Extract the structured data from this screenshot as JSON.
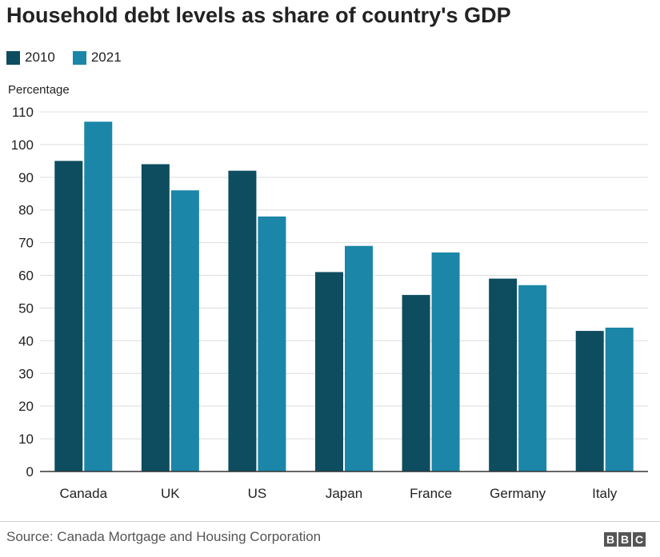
{
  "colors": {
    "series_2010": "#0d4d5f",
    "series_2021": "#1b86a8",
    "gridline": "#dddddd",
    "axis": "#333333"
  },
  "chart_data": {
    "type": "bar",
    "title": "Household debt levels as share of country's GDP",
    "ylabel": "Percentage",
    "xlabel": "",
    "categories": [
      "Canada",
      "UK",
      "US",
      "Japan",
      "France",
      "Germany",
      "Italy"
    ],
    "series": [
      {
        "name": "2010",
        "values": [
          95,
          94,
          92,
          61,
          54,
          59,
          43
        ]
      },
      {
        "name": "2021",
        "values": [
          107,
          86,
          78,
          69,
          67,
          57,
          44
        ]
      }
    ],
    "ylim": [
      0,
      110
    ],
    "yticks": [
      0,
      10,
      20,
      30,
      40,
      50,
      60,
      70,
      80,
      90,
      100,
      110
    ],
    "grid": true,
    "legend": "top-left"
  },
  "footer": {
    "source": "Source: Canada Mortgage and Housing Corporation",
    "logo_letters": [
      "B",
      "B",
      "C"
    ]
  }
}
